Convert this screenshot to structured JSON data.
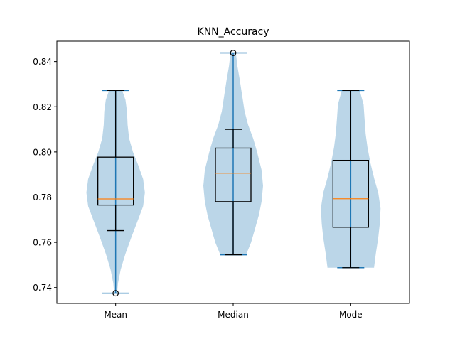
{
  "chart_data": {
    "type": "violin",
    "title": "KNN_Accuracy",
    "xlabel": "",
    "ylabel": "",
    "categories": [
      "Mean",
      "Median",
      "Mode"
    ],
    "ylim": [
      0.733,
      0.849
    ],
    "yticks": [
      0.74,
      0.76,
      0.78,
      0.8,
      0.82,
      0.84
    ],
    "ytick_labels": [
      "0.74",
      "0.76",
      "0.78",
      "0.80",
      "0.82",
      "0.84"
    ],
    "grid": false,
    "colors": {
      "violin_fill": "#1f77b4",
      "violin_lines": "#1f77b4",
      "median_line": "#ff7f0e",
      "box_edge": "#000000"
    },
    "violins": [
      {
        "name": "Mean",
        "min": 0.7375,
        "max": 0.8272,
        "density": [
          [
            0.7375,
            0.05
          ],
          [
            0.742,
            0.08
          ],
          [
            0.748,
            0.17
          ],
          [
            0.755,
            0.33
          ],
          [
            0.762,
            0.52
          ],
          [
            0.77,
            0.75
          ],
          [
            0.776,
            0.92
          ],
          [
            0.782,
            0.98
          ],
          [
            0.788,
            0.92
          ],
          [
            0.794,
            0.76
          ],
          [
            0.8,
            0.58
          ],
          [
            0.806,
            0.45
          ],
          [
            0.812,
            0.4
          ],
          [
            0.818,
            0.38
          ],
          [
            0.823,
            0.33
          ],
          [
            0.8272,
            0.22
          ]
        ],
        "box": {
          "q1": 0.7765,
          "median": 0.7792,
          "q3": 0.7977,
          "whisker_low": 0.7652,
          "whisker_high": 0.8272
        },
        "outliers": [
          0.7375
        ]
      },
      {
        "name": "Median",
        "min": 0.7545,
        "max": 0.8438,
        "density": [
          [
            0.7545,
            0.43
          ],
          [
            0.76,
            0.6
          ],
          [
            0.766,
            0.73
          ],
          [
            0.772,
            0.86
          ],
          [
            0.778,
            0.95
          ],
          [
            0.785,
            1.0
          ],
          [
            0.792,
            0.95
          ],
          [
            0.8,
            0.8
          ],
          [
            0.806,
            0.67
          ],
          [
            0.812,
            0.5
          ],
          [
            0.818,
            0.38
          ],
          [
            0.825,
            0.3
          ],
          [
            0.832,
            0.22
          ],
          [
            0.838,
            0.14
          ],
          [
            0.8438,
            0.09
          ]
        ],
        "box": {
          "q1": 0.778,
          "median": 0.7906,
          "q3": 0.8017,
          "whisker_low": 0.7545,
          "whisker_high": 0.81
        },
        "outliers": [
          0.8438
        ]
      },
      {
        "name": "Mode",
        "min": 0.7488,
        "max": 0.8272,
        "density": [
          [
            0.7488,
            0.78
          ],
          [
            0.755,
            0.84
          ],
          [
            0.762,
            0.92
          ],
          [
            0.768,
            0.97
          ],
          [
            0.775,
            1.0
          ],
          [
            0.782,
            0.92
          ],
          [
            0.788,
            0.79
          ],
          [
            0.795,
            0.66
          ],
          [
            0.802,
            0.56
          ],
          [
            0.808,
            0.5
          ],
          [
            0.815,
            0.46
          ],
          [
            0.821,
            0.43
          ],
          [
            0.8272,
            0.3
          ]
        ],
        "box": {
          "q1": 0.7667,
          "median": 0.7793,
          "q3": 0.7963,
          "whisker_low": 0.7488,
          "whisker_high": 0.8272
        },
        "outliers": []
      }
    ]
  }
}
